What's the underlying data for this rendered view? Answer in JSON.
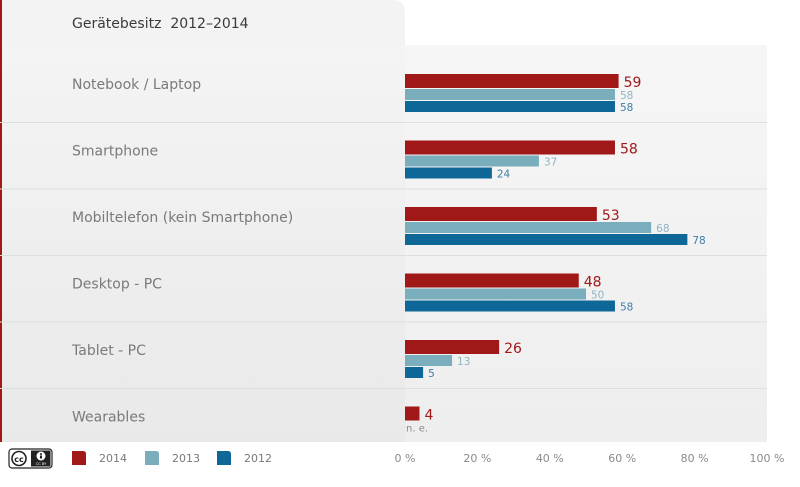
{
  "title": "Gerätebesitz  2012–2014",
  "colors": {
    "2014": "#a01818",
    "2013": "#7aaebd",
    "2012": "#0e6796",
    "label_2014": "#a01818",
    "label_2013": "#8fb6c2",
    "label_2012": "#3e7fa6"
  },
  "license_badge": "CC BY",
  "chart_data": {
    "type": "bar",
    "orientation": "horizontal",
    "title": "Gerätebesitz  2012–2014",
    "categories": [
      "Notebook / Laptop",
      "Smartphone",
      "Mobiltelefon (kein Smartphone)",
      "Desktop - PC",
      "Tablet - PC",
      "Wearables"
    ],
    "series": [
      {
        "name": "2014",
        "values": [
          59,
          58,
          53,
          48,
          26,
          4
        ]
      },
      {
        "name": "2013",
        "values": [
          58,
          37,
          68,
          50,
          13,
          null
        ]
      },
      {
        "name": "2012",
        "values": [
          58,
          24,
          78,
          58,
          5,
          null
        ]
      }
    ],
    "missing_label": "n. e.",
    "xlim": [
      0,
      100
    ],
    "x_ticks": [
      "0 %",
      "20 %",
      "40 %",
      "60 %",
      "80 %",
      "100 %"
    ],
    "legend": [
      "2014",
      "2013",
      "2012"
    ],
    "legend_position": "bottom-left"
  }
}
